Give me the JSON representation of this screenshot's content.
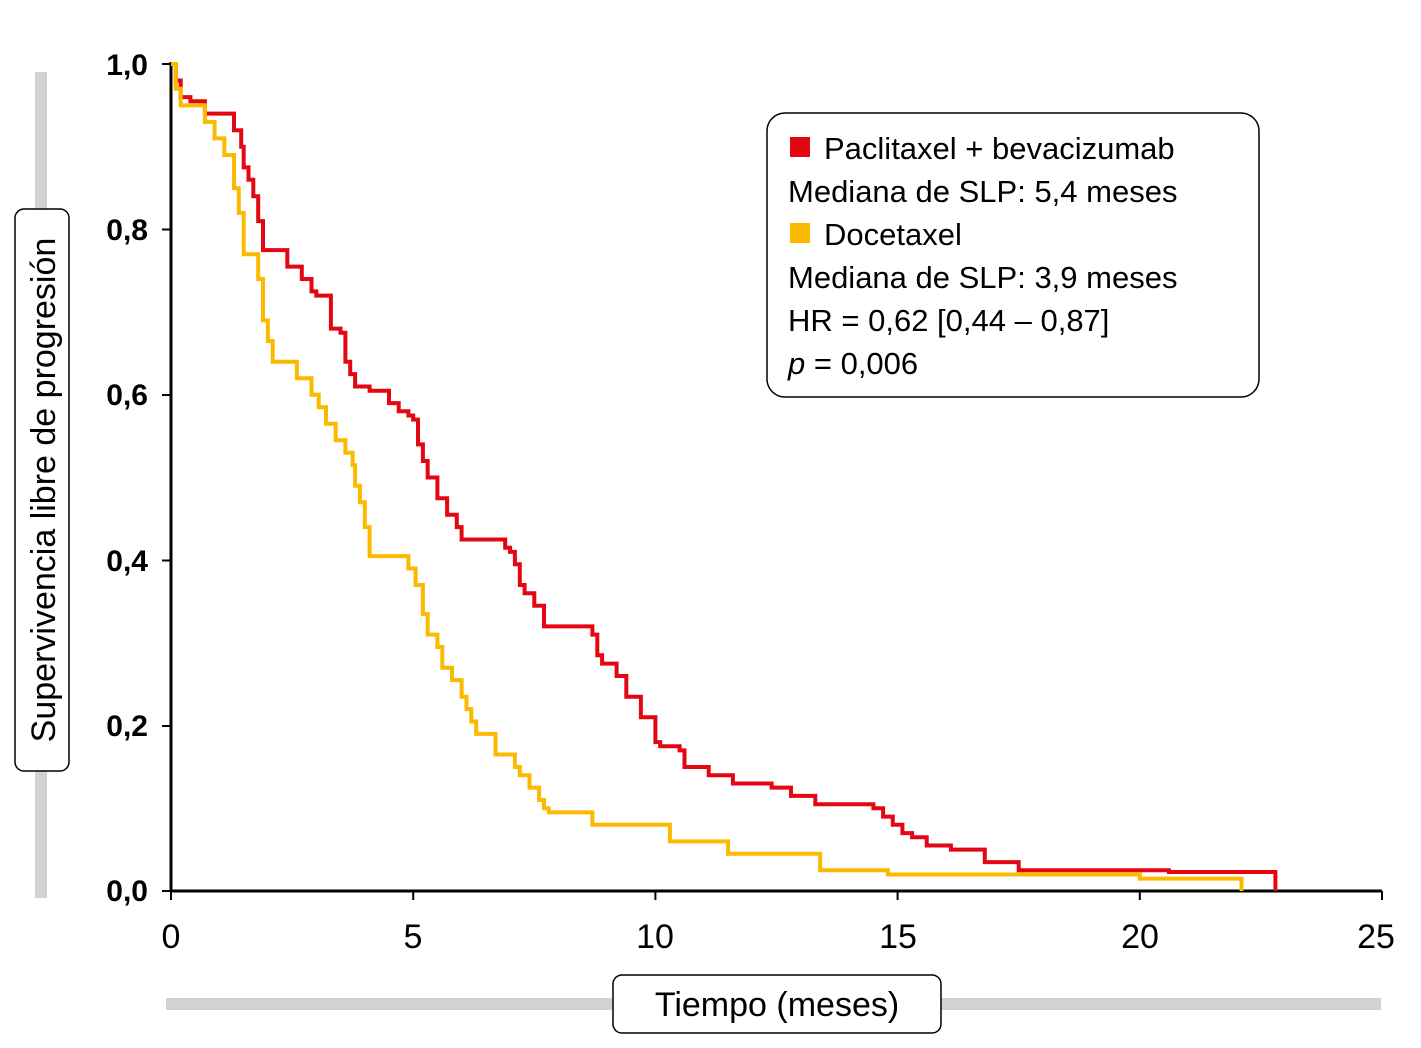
{
  "chart_data": {
    "type": "line",
    "subtype": "kaplan-meier step",
    "xlabel": "Tiempo (meses)",
    "ylabel": "Supervivencia libre de progresión",
    "xlim": [
      0,
      25
    ],
    "ylim": [
      0,
      1
    ],
    "x_ticks": [
      0,
      5,
      10,
      15,
      20,
      25
    ],
    "x_tick_labels": [
      "0",
      "5",
      "10",
      "15",
      "20",
      "25"
    ],
    "y_ticks": [
      0,
      0.2,
      0.4,
      0.6,
      0.8,
      1.0
    ],
    "y_tick_labels": [
      "0,0",
      "0,2",
      "0,4",
      "0,6",
      "0,8",
      "1,0"
    ],
    "grid": false,
    "legend_position": "top-right",
    "legend": {
      "series1_name": "Paclitaxel + bevacizumab",
      "series1_median": "Mediana de SLP: 5,4 meses",
      "series2_name": "Docetaxel",
      "series2_median": "Mediana de SLP: 3,9 meses",
      "hr": "HR = 0,62 [0,44 – 0,87]",
      "p_symbol": "p",
      "p_value": " = 0,006"
    },
    "series": [
      {
        "name": "Paclitaxel + bevacizumab",
        "color": "#e30613",
        "x": [
          0,
          0.1,
          0.2,
          0.4,
          0.7,
          1.3,
          1.45,
          1.5,
          1.6,
          1.7,
          1.8,
          1.9,
          2.4,
          2.7,
          2.9,
          3.0,
          3.3,
          3.5,
          3.6,
          3.7,
          3.8,
          4.1,
          4.5,
          4.7,
          4.9,
          5.0,
          5.1,
          5.2,
          5.3,
          5.5,
          5.7,
          5.9,
          6.0,
          6.9,
          7.0,
          7.1,
          7.2,
          7.3,
          7.5,
          7.7,
          8.7,
          8.8,
          8.9,
          9.2,
          9.4,
          9.7,
          10.0,
          10.1,
          10.5,
          10.6,
          11.1,
          11.6,
          12.4,
          12.8,
          13.3,
          14.5,
          14.7,
          14.9,
          15.1,
          15.3,
          15.6,
          16.1,
          16.8,
          17.5,
          20.6,
          22.8
        ],
        "y": [
          1.0,
          0.98,
          0.96,
          0.955,
          0.94,
          0.92,
          0.9,
          0.875,
          0.86,
          0.84,
          0.81,
          0.775,
          0.755,
          0.74,
          0.725,
          0.72,
          0.68,
          0.675,
          0.64,
          0.625,
          0.61,
          0.605,
          0.59,
          0.58,
          0.575,
          0.57,
          0.54,
          0.52,
          0.5,
          0.475,
          0.455,
          0.44,
          0.425,
          0.415,
          0.41,
          0.395,
          0.37,
          0.36,
          0.345,
          0.32,
          0.31,
          0.285,
          0.275,
          0.26,
          0.235,
          0.21,
          0.18,
          0.175,
          0.17,
          0.15,
          0.14,
          0.13,
          0.125,
          0.115,
          0.105,
          0.1,
          0.09,
          0.08,
          0.07,
          0.065,
          0.055,
          0.05,
          0.035,
          0.025,
          0.023,
          0.0
        ]
      },
      {
        "name": "Docetaxel",
        "color": "#fbb900",
        "x": [
          0,
          0.1,
          0.2,
          0.7,
          0.9,
          1.1,
          1.3,
          1.4,
          1.5,
          1.8,
          1.9,
          2.0,
          2.1,
          2.6,
          2.9,
          3.05,
          3.2,
          3.4,
          3.6,
          3.75,
          3.8,
          3.9,
          4.0,
          4.1,
          4.9,
          5.05,
          5.2,
          5.3,
          5.5,
          5.6,
          5.8,
          6.0,
          6.1,
          6.2,
          6.3,
          6.7,
          7.1,
          7.2,
          7.4,
          7.6,
          7.7,
          7.8,
          8.7,
          10.3,
          11.5,
          13.4,
          14.8,
          15.1,
          16.0,
          20.0,
          22.1
        ],
        "y": [
          1.0,
          0.97,
          0.95,
          0.93,
          0.91,
          0.89,
          0.85,
          0.82,
          0.77,
          0.74,
          0.69,
          0.665,
          0.64,
          0.62,
          0.6,
          0.585,
          0.565,
          0.545,
          0.53,
          0.515,
          0.49,
          0.47,
          0.44,
          0.405,
          0.39,
          0.37,
          0.335,
          0.31,
          0.295,
          0.27,
          0.255,
          0.235,
          0.22,
          0.205,
          0.19,
          0.165,
          0.15,
          0.14,
          0.125,
          0.11,
          0.1,
          0.095,
          0.08,
          0.06,
          0.045,
          0.025,
          0.02,
          0.02,
          0.02,
          0.015,
          0.0
        ]
      }
    ]
  }
}
